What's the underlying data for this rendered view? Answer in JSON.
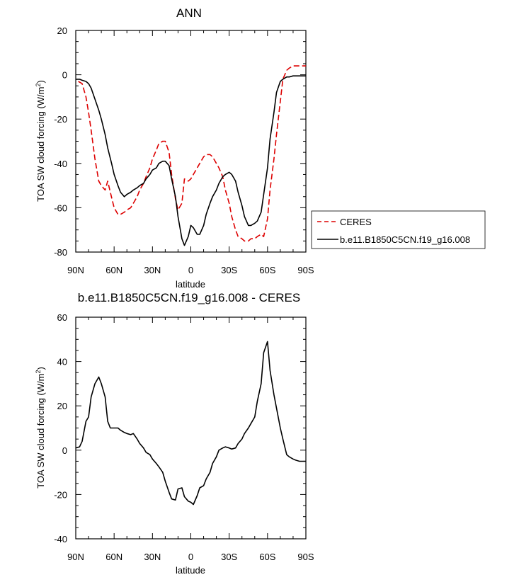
{
  "chart_data": [
    {
      "type": "line",
      "title": "ANN",
      "xlabel": "latitude",
      "ylabel_main": "TOA SW cloud forcing (W/m",
      "ylabel_sup": "2",
      "ylabel_close": ")",
      "xlim": [
        90,
        -90
      ],
      "ylim": [
        -80,
        20
      ],
      "yticks": [
        -80,
        -60,
        -40,
        -20,
        0,
        20
      ],
      "ytick_labels": [
        "-80",
        "-60",
        "-40",
        "-20",
        "0",
        "20"
      ],
      "xticks": [
        90,
        60,
        30,
        0,
        -30,
        -60,
        -90
      ],
      "xtick_labels": [
        "90N",
        "60N",
        "30N",
        "0",
        "30S",
        "60S",
        "90S"
      ],
      "legend_position": "right",
      "series": [
        {
          "name": "CERES",
          "color": "#dd0000",
          "dash": "dashed",
          "x": [
            88,
            85,
            82,
            80,
            78,
            75,
            72,
            70,
            67,
            65,
            63,
            60,
            57,
            55,
            52,
            50,
            47,
            45,
            42,
            40,
            37,
            35,
            32,
            30,
            27,
            25,
            22,
            20,
            17,
            15,
            12,
            10,
            7,
            5,
            2,
            0,
            -2,
            -5,
            -7,
            -10,
            -12,
            -15,
            -17,
            -20,
            -22,
            -25,
            -27,
            -30,
            -32,
            -35,
            -37,
            -40,
            -42,
            -45,
            -47,
            -50,
            -52,
            -55,
            -57,
            -60,
            -62,
            -65,
            -67,
            -70,
            -72,
            -75,
            -77,
            -80,
            -82,
            -85,
            -87,
            -90
          ],
          "y": [
            -3,
            -4,
            -10,
            -17,
            -25,
            -38,
            -48,
            -50,
            -52,
            -48,
            -53,
            -60,
            -63,
            -63,
            -62,
            -61,
            -60,
            -58,
            -55,
            -52,
            -49,
            -46,
            -42,
            -38,
            -34,
            -31,
            -30,
            -30,
            -35,
            -45,
            -56,
            -61,
            -58,
            -47,
            -48,
            -47,
            -45,
            -42,
            -40,
            -37,
            -36,
            -36,
            -37,
            -40,
            -42,
            -46,
            -52,
            -58,
            -64,
            -70,
            -73,
            -74,
            -75,
            -75,
            -74,
            -74,
            -73,
            -72,
            -73,
            -65,
            -52,
            -38,
            -27,
            -12,
            -2,
            2,
            3,
            4,
            4,
            4,
            4,
            4
          ]
        },
        {
          "name": "b.e11.B1850C5CN.f19_g16.008",
          "color": "#000000",
          "dash": "solid",
          "x": [
            90,
            87,
            85,
            82,
            80,
            78,
            75,
            72,
            70,
            67,
            65,
            62,
            60,
            57,
            55,
            52,
            50,
            47,
            45,
            42,
            40,
            37,
            35,
            32,
            30,
            27,
            25,
            22,
            20,
            17,
            15,
            12,
            10,
            7,
            5,
            2,
            0,
            -2,
            -5,
            -7,
            -10,
            -12,
            -15,
            -17,
            -20,
            -22,
            -25,
            -27,
            -30,
            -32,
            -35,
            -37,
            -40,
            -42,
            -45,
            -47,
            -50,
            -52,
            -55,
            -57,
            -60,
            -62,
            -65,
            -67,
            -70,
            -72,
            -75,
            -77,
            -80,
            -85,
            -90
          ],
          "y": [
            -2,
            -2,
            -2.5,
            -3,
            -4,
            -6,
            -11,
            -16,
            -20,
            -27,
            -33,
            -40,
            -45,
            -50,
            -53,
            -55,
            -54,
            -53,
            -52,
            -51,
            -50,
            -49,
            -47,
            -45,
            -43,
            -42,
            -40,
            -39,
            -39,
            -41,
            -47,
            -55,
            -64,
            -74,
            -77,
            -73,
            -68,
            -69,
            -72,
            -72,
            -68,
            -63,
            -58,
            -55,
            -52,
            -49,
            -46,
            -45,
            -44,
            -45,
            -48,
            -53,
            -59,
            -64,
            -68,
            -68,
            -67,
            -66,
            -62,
            -54,
            -42,
            -29,
            -17,
            -8,
            -3,
            -2,
            -1,
            -1,
            -0.5,
            -0.5,
            -0.5
          ]
        }
      ]
    },
    {
      "type": "line",
      "title": "b.e11.B1850C5CN.f19_g16.008 - CERES",
      "xlabel": "latitude",
      "ylabel_main": "TOA SW cloud forcing (W/m",
      "ylabel_sup": "2",
      "ylabel_close": ")",
      "xlim": [
        90,
        -90
      ],
      "ylim": [
        -40,
        60
      ],
      "yticks": [
        -40,
        -20,
        0,
        20,
        40,
        60
      ],
      "ytick_labels": [
        "-40",
        "-20",
        "0",
        "20",
        "40",
        "60"
      ],
      "xticks": [
        90,
        60,
        30,
        0,
        -30,
        -60,
        -90
      ],
      "xtick_labels": [
        "90N",
        "60N",
        "30N",
        "0",
        "30S",
        "60S",
        "90S"
      ],
      "series": [
        {
          "color": "#000000",
          "dash": "solid",
          "x": [
            90,
            87,
            85,
            82,
            80,
            78,
            75,
            72,
            70,
            67,
            65,
            63,
            60,
            57,
            55,
            52,
            50,
            47,
            45,
            42,
            40,
            37,
            35,
            32,
            30,
            27,
            25,
            22,
            20,
            17,
            15,
            12,
            10,
            7,
            5,
            2,
            0,
            -2,
            -5,
            -7,
            -10,
            -12,
            -15,
            -17,
            -20,
            -22,
            -25,
            -27,
            -30,
            -32,
            -35,
            -37,
            -40,
            -42,
            -45,
            -47,
            -50,
            -52,
            -55,
            -57,
            -60,
            -62,
            -65,
            -67,
            -70,
            -72,
            -75,
            -77,
            -80,
            -82,
            -85,
            -87,
            -90
          ],
          "y": [
            1,
            1.5,
            4,
            13,
            15,
            24,
            30,
            33,
            30,
            24,
            13,
            10,
            10,
            10,
            9,
            8,
            7.5,
            7,
            7.5,
            5,
            3,
            1,
            -1,
            -2,
            -4,
            -6,
            -7.5,
            -10,
            -14,
            -19,
            -22,
            -22.5,
            -17.5,
            -17,
            -21,
            -23,
            -23.5,
            -24.5,
            -20.5,
            -17,
            -16,
            -13,
            -10,
            -6,
            -3,
            0,
            1,
            1.5,
            1,
            0.5,
            1,
            3,
            5,
            7.5,
            10,
            12,
            15,
            22,
            30,
            44,
            49,
            36,
            25,
            19,
            10,
            5,
            -2,
            -3,
            -4,
            -4.5,
            -5,
            -5,
            -5
          ]
        }
      ]
    }
  ]
}
